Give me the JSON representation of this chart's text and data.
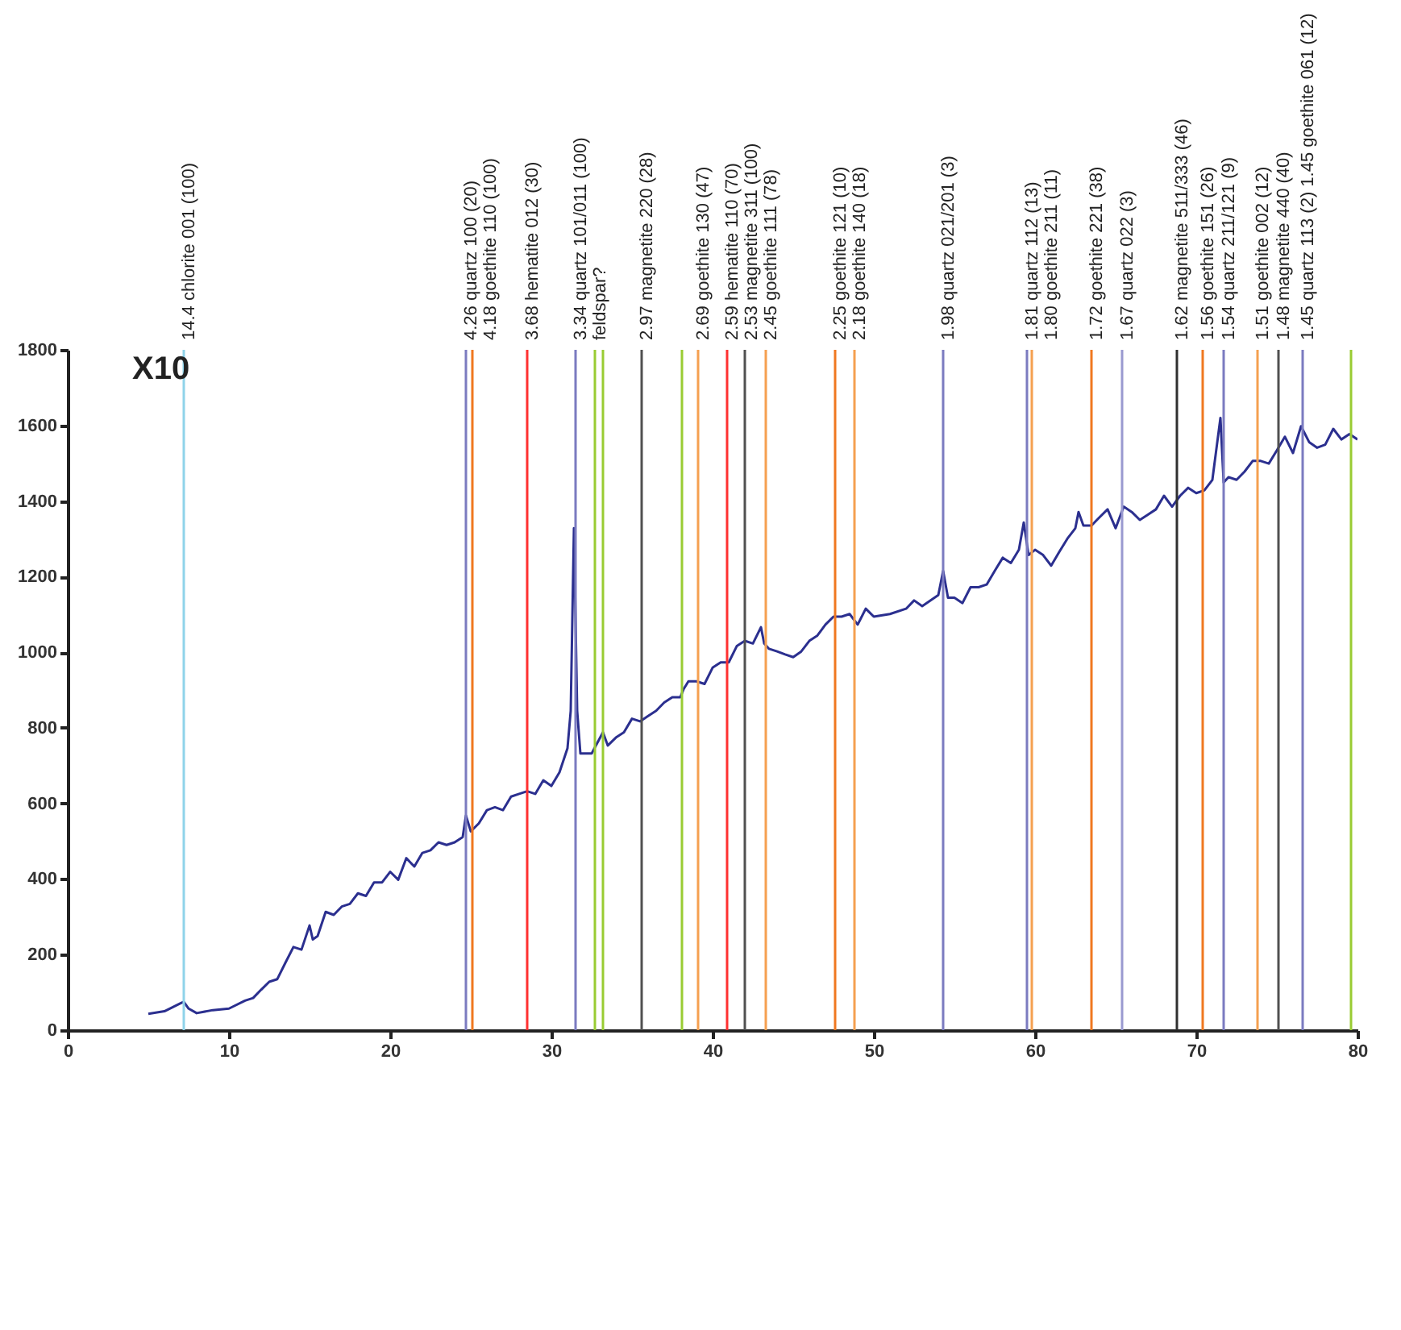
{
  "chart_data": {
    "type": "line",
    "x": [
      5,
      6,
      7,
      7.2,
      7.5,
      8,
      9,
      10,
      11,
      11.5,
      12,
      12.5,
      13,
      13.5,
      14,
      14.5,
      15,
      15.2,
      15.5,
      16,
      16.5,
      17,
      17.5,
      18,
      18.5,
      19,
      19.5,
      20,
      20.5,
      21,
      21.5,
      22,
      22.5,
      23,
      23.5,
      24,
      24.5,
      24.7,
      25,
      25.5,
      26,
      26.5,
      27,
      27.5,
      28,
      28.5,
      29,
      29.5,
      30,
      30.5,
      31,
      31.2,
      31.4,
      31.6,
      31.8,
      32.5,
      33.2,
      33.5,
      34,
      34.5,
      35,
      35.5,
      36,
      36.5,
      37,
      37.5,
      38,
      38.2,
      38.5,
      39,
      39.5,
      40,
      40.5,
      41,
      41.5,
      42,
      42.5,
      43,
      43.2,
      43.5,
      44,
      44.5,
      45,
      45.5,
      46,
      46.5,
      47,
      47.5,
      48,
      48.5,
      49,
      49.5,
      50,
      51,
      52,
      52.5,
      53,
      54,
      54.3,
      54.6,
      55,
      55.5,
      56,
      56.5,
      57,
      57.5,
      58,
      58.5,
      59,
      59.3,
      59.6,
      60,
      60.5,
      61,
      61.5,
      62,
      62.5,
      62.7,
      63,
      63.5,
      64,
      64.5,
      65,
      65.5,
      66,
      66.5,
      67,
      67.5,
      68,
      68.5,
      69,
      69.5,
      70,
      70.5,
      71,
      71.5,
      71.7,
      72,
      72.5,
      73,
      73.5,
      74,
      74.5,
      75,
      75.5,
      76,
      76.5,
      77,
      77.5,
      78,
      78.5,
      79,
      79.5,
      80
    ],
    "series": [
      {
        "color": "#2b2f8f",
        "values": [
          43,
          50,
          71,
          75,
          57,
          45,
          53,
          57,
          78,
          85,
          107,
          128,
          135,
          178,
          220,
          213,
          277,
          240,
          249,
          313,
          305,
          327,
          334,
          362,
          355,
          391,
          391,
          419,
          398,
          455,
          433,
          469,
          476,
          497,
          490,
          497,
          511,
          568,
          526,
          547,
          582,
          590,
          582,
          618,
          625,
          632,
          625,
          661,
          646,
          682,
          746,
          845,
          1328,
          845,
          732,
          732,
          788,
          753,
          774,
          788,
          824,
          817,
          831,
          845,
          867,
          881,
          881,
          902,
          923,
          923,
          916,
          959,
          973,
          973,
          1016,
          1030,
          1023,
          1066,
          1023,
          1009,
          1002,
          994,
          987,
          1002,
          1030,
          1044,
          1073,
          1094,
          1094,
          1101,
          1073,
          1115,
          1094,
          1101,
          1115,
          1137,
          1122,
          1151,
          1215,
          1144,
          1144,
          1130,
          1172,
          1172,
          1179,
          1215,
          1250,
          1236,
          1271,
          1343,
          1257,
          1271,
          1257,
          1229,
          1265,
          1300,
          1328,
          1371,
          1335,
          1335,
          1357,
          1378,
          1328,
          1385,
          1371,
          1350,
          1364,
          1378,
          1414,
          1385,
          1414,
          1435,
          1421,
          1428,
          1456,
          1620,
          1449,
          1463,
          1456,
          1478,
          1506,
          1506,
          1499,
          1534,
          1570,
          1527,
          1598,
          1556,
          1541,
          1549,
          1591,
          1563,
          1577,
          1563
        ]
      }
    ],
    "xlim": [
      0,
      80
    ],
    "xticks": [
      0,
      10,
      20,
      30,
      40,
      50,
      60,
      70,
      80
    ],
    "ylim": [
      0,
      1800
    ],
    "yticks": [
      0,
      200,
      400,
      600,
      800,
      1000,
      1200,
      1400,
      1600,
      1800
    ],
    "annotations": [
      "X10"
    ],
    "ref_lines": [
      {
        "axis": "x",
        "value": 7.2,
        "label": "14.4 chlorite 001 (100)",
        "color": "#8fd3ea"
      },
      {
        "axis": "x",
        "value": 24.7,
        "label": "4.26 quartz 100 (20)",
        "color": "#7b7bc0"
      },
      {
        "axis": "x",
        "value": 25.1,
        "label": "4.18 goethite 110 (100)",
        "color": "#f07820"
      },
      {
        "axis": "x",
        "value": 28.5,
        "label": "3.68 hematite 012 (30)",
        "color": "#ff3030"
      },
      {
        "axis": "x",
        "value": 31.5,
        "label": "3.34 quartz 101/011 (100)",
        "color": "#7b7bc0"
      },
      {
        "axis": "x",
        "value": 32.7,
        "label": "feldspar?",
        "color": "#99cc33"
      },
      {
        "axis": "x",
        "value": 33.2,
        "color": "#99cc33"
      },
      {
        "axis": "x",
        "value": 35.6,
        "label": "2.97 magnetite 220 (28)",
        "color": "#505050"
      },
      {
        "axis": "x",
        "value": 38.1,
        "color": "#99cc33"
      },
      {
        "axis": "x",
        "value": 39.1,
        "label": "2.69 goethite 130 (47)",
        "color": "#f5a050"
      },
      {
        "axis": "x",
        "value": 40.9,
        "label": "2.59 hematite 110 (70)",
        "color": "#ff3030"
      },
      {
        "axis": "x",
        "value": 42.0,
        "label": "2.53 magnetite 311 (100)",
        "color": "#505050"
      },
      {
        "axis": "x",
        "value": 43.3,
        "label": "2.45 goethite 111 (78)",
        "color": "#f5a050"
      },
      {
        "axis": "x",
        "value": 47.6,
        "label": "2.25 goethite 121 (10)",
        "color": "#f07820"
      },
      {
        "axis": "x",
        "value": 48.8,
        "label": "2.18 goethite 140 (18)",
        "color": "#f5a050"
      },
      {
        "axis": "x",
        "value": 54.3,
        "label": "1.98 quartz 021/201 (3)",
        "color": "#7b7bc0"
      },
      {
        "axis": "x",
        "value": 59.5,
        "label": "1.81 quartz 112 (13)",
        "color": "#7b7bc0"
      },
      {
        "axis": "x",
        "value": 59.8,
        "label": "1.80 goethite 211 (11)",
        "color": "#f5a050"
      },
      {
        "axis": "x",
        "value": 63.5,
        "label": "1.72 goethite 221 (38)",
        "color": "#f07820"
      },
      {
        "axis": "x",
        "value": 65.4,
        "label": "1.67 quartz 022 (3)",
        "color": "#9a9ad0"
      },
      {
        "axis": "x",
        "value": 68.8,
        "label": "1.62 magnetite 511/333 (46)",
        "color": "#303030"
      },
      {
        "axis": "x",
        "value": 70.4,
        "label": "1.56 goethite 151 (26)",
        "color": "#f07820"
      },
      {
        "axis": "x",
        "value": 71.7,
        "label": "1.54 quartz 211/121 (9)",
        "color": "#7b7bc0"
      },
      {
        "axis": "x",
        "value": 73.8,
        "label": "1.51 goethite 002 (12)",
        "color": "#f5a050"
      },
      {
        "axis": "x",
        "value": 75.1,
        "label": "1.48 magnetite 440 (40)",
        "color": "#505050"
      },
      {
        "axis": "x",
        "value": 76.6,
        "label": "1.45 quartz 113 (2)  1.45 goethite 061 (12)",
        "color": "#7b7bc0"
      },
      {
        "axis": "x",
        "value": 79.6,
        "color": "#99cc33"
      }
    ]
  }
}
